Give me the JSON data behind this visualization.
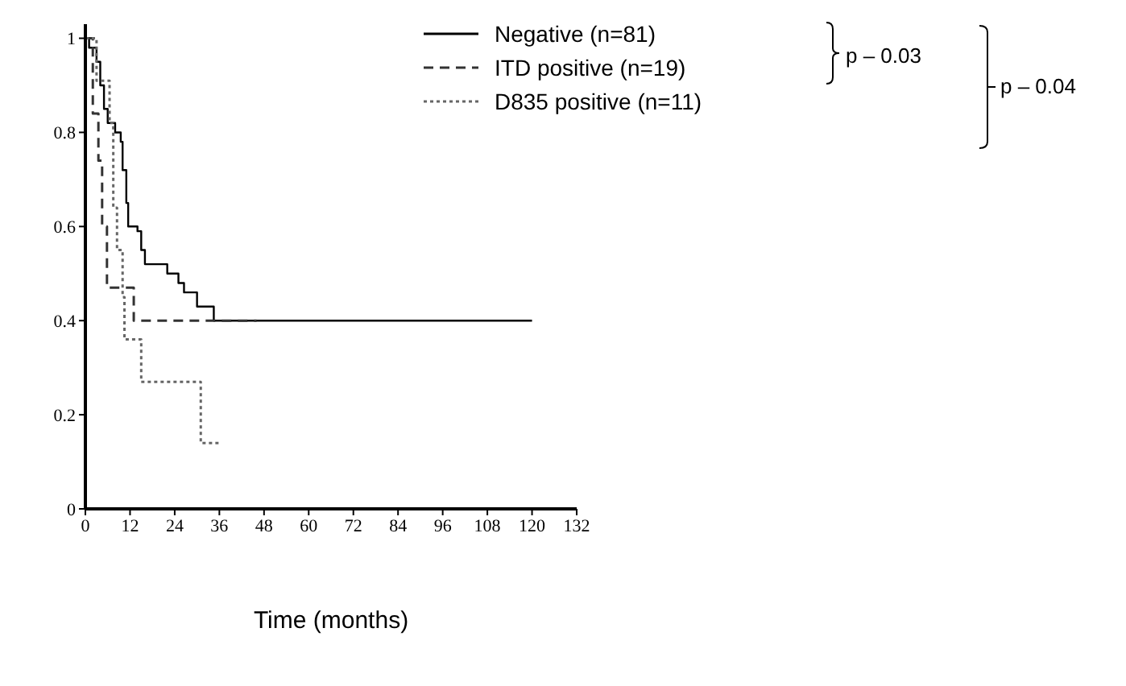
{
  "chart_data": {
    "type": "step",
    "xlabel": "Time (months)",
    "xlim": [
      0,
      132
    ],
    "xticks": [
      0,
      12,
      24,
      36,
      48,
      60,
      72,
      84,
      96,
      108,
      120,
      132
    ],
    "ylim": [
      0,
      1.03
    ],
    "yticks": [
      0,
      0.2,
      0.4,
      0.6,
      0.8,
      1
    ],
    "legend": "top right",
    "marker": "none",
    "annotations": [
      "p – 0.03",
      "p – 0.04"
    ],
    "series": [
      {
        "name": "Negative (n=81)",
        "color": "#000000",
        "line_style": "solid",
        "x": [
          0,
          1,
          3,
          4,
          5,
          6,
          8,
          9.5,
          10,
          11,
          11.5,
          14,
          15,
          16,
          21,
          22,
          25,
          26.5,
          30,
          34.5,
          120
        ],
        "values": [
          1,
          0.98,
          0.95,
          0.9,
          0.85,
          0.82,
          0.8,
          0.78,
          0.72,
          0.65,
          0.6,
          0.59,
          0.55,
          0.52,
          0.52,
          0.5,
          0.48,
          0.46,
          0.43,
          0.4,
          0.4
        ]
      },
      {
        "name": "ITD positive (n=19)",
        "color": "#333333",
        "line_style": "dashed",
        "x": [
          0,
          2,
          3.5,
          4.5,
          5.8,
          13,
          46
        ],
        "values": [
          1,
          0.84,
          0.74,
          0.6,
          0.47,
          0.4,
          0.4
        ]
      },
      {
        "name": "D835 positive (n=11)",
        "color": "#666666",
        "line_style": "dotted",
        "x": [
          0,
          3,
          6.5,
          7.5,
          8.5,
          10,
          10.5,
          15,
          31,
          36.2
        ],
        "values": [
          1,
          0.91,
          0.82,
          0.64,
          0.55,
          0.45,
          0.36,
          0.27,
          0.14,
          0.14
        ]
      }
    ]
  }
}
